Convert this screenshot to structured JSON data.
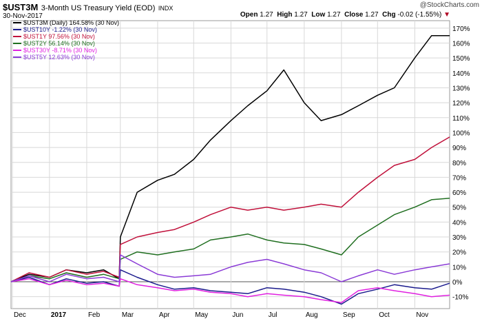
{
  "header": {
    "symbol": "$UST3M",
    "name": "3-Month US Treasury Yield (EOD)",
    "exchange": "INDX",
    "date": "30-Nov-2017",
    "open_label": "Open",
    "open": "1.27",
    "high_label": "High",
    "high": "1.27",
    "low_label": "Low",
    "low": "1.27",
    "close_label": "Close",
    "close": "1.27",
    "chg_label": "Chg",
    "chg": "-0.02 (-1.55%)",
    "chg_marker": "▼",
    "watermark": "@StockCharts.com"
  },
  "colors": {
    "UST3M": "#000000",
    "UST10Y": "#1a1a8c",
    "UST1Y": "#c0103a",
    "UST2Y": "#1f6e1f",
    "UST30Y": "#e020e0",
    "UST5Y": "#8a3ad6",
    "grid": "#d8d8d8",
    "down": "#b00020"
  },
  "chart_data": {
    "type": "line",
    "x_ticks": [
      "Dec",
      "2017",
      "Feb",
      "Mar",
      "Apr",
      "May",
      "Jun",
      "Jul",
      "Aug",
      "Sep",
      "Oct",
      "Nov"
    ],
    "ylim": [
      -18,
      175
    ],
    "y_ticks": [
      -10,
      0,
      10,
      20,
      30,
      40,
      50,
      60,
      70,
      80,
      90,
      100,
      110,
      120,
      130,
      140,
      150,
      160,
      170
    ],
    "y_tick_labels": [
      "-10%",
      "0%",
      "10%",
      "20%",
      "30%",
      "40%",
      "50%",
      "60%",
      "70%",
      "80%",
      "90%",
      "100%",
      "110%",
      "120%",
      "130%",
      "140%",
      "150%",
      "160%",
      "170%"
    ],
    "grid": true,
    "legend_position": "top-left",
    "x": [
      "2016-11-30",
      "2016-12-15",
      "2017-01-01",
      "2017-01-15",
      "2017-02-01",
      "2017-02-15",
      "2017-02-28",
      "2017-03-01",
      "2017-03-15",
      "2017-04-01",
      "2017-04-15",
      "2017-05-01",
      "2017-05-15",
      "2017-06-01",
      "2017-06-15",
      "2017-07-01",
      "2017-07-15",
      "2017-08-01",
      "2017-08-15",
      "2017-09-01",
      "2017-09-15",
      "2017-10-01",
      "2017-10-15",
      "2017-11-01",
      "2017-11-15",
      "2017-11-30"
    ],
    "series": [
      {
        "key": "UST3M",
        "legend": "$UST3M (Daily) 164.58% (30 Nov)",
        "values": [
          0,
          5,
          3,
          8,
          6,
          8,
          2,
          30,
          60,
          68,
          72,
          82,
          95,
          108,
          118,
          128,
          142,
          120,
          108,
          112,
          118,
          125,
          130,
          150,
          165,
          165
        ]
      },
      {
        "key": "UST10Y",
        "legend": "$UST10Y -1.22% (30 Nov)",
        "values": [
          0,
          3,
          -2,
          2,
          -1,
          0,
          -3,
          8,
          3,
          -2,
          -5,
          -4,
          -6,
          -7,
          -8,
          -4,
          -5,
          -7,
          -10,
          -15,
          -8,
          -5,
          -2,
          -4,
          -5,
          -1
        ]
      },
      {
        "key": "UST1Y",
        "legend": "$UST1Y 97.56% (30 Nov)",
        "values": [
          0,
          6,
          3,
          8,
          5,
          7,
          3,
          25,
          30,
          33,
          35,
          40,
          45,
          50,
          48,
          50,
          48,
          50,
          52,
          50,
          60,
          70,
          78,
          82,
          90,
          97
        ]
      },
      {
        "key": "UST2Y",
        "legend": "$UST2Y 56.14% (30 Nov)",
        "values": [
          0,
          4,
          2,
          6,
          3,
          5,
          2,
          15,
          20,
          18,
          20,
          22,
          28,
          30,
          32,
          28,
          26,
          25,
          22,
          18,
          30,
          38,
          45,
          50,
          55,
          56
        ]
      },
      {
        "key": "UST30Y",
        "legend": "$UST30Y -8.71% (30 Nov)",
        "values": [
          0,
          2,
          -2,
          1,
          -2,
          -1,
          -3,
          2,
          -2,
          -4,
          -6,
          -5,
          -7,
          -8,
          -10,
          -8,
          -9,
          -10,
          -12,
          -14,
          -6,
          -4,
          -6,
          -8,
          -10,
          -9
        ]
      },
      {
        "key": "UST5Y",
        "legend": "$UST5Y 12.63% (30 Nov)",
        "values": [
          0,
          4,
          0,
          5,
          2,
          3,
          0,
          18,
          12,
          5,
          3,
          4,
          5,
          10,
          13,
          15,
          12,
          8,
          6,
          0,
          4,
          8,
          5,
          8,
          10,
          12
        ]
      }
    ]
  }
}
